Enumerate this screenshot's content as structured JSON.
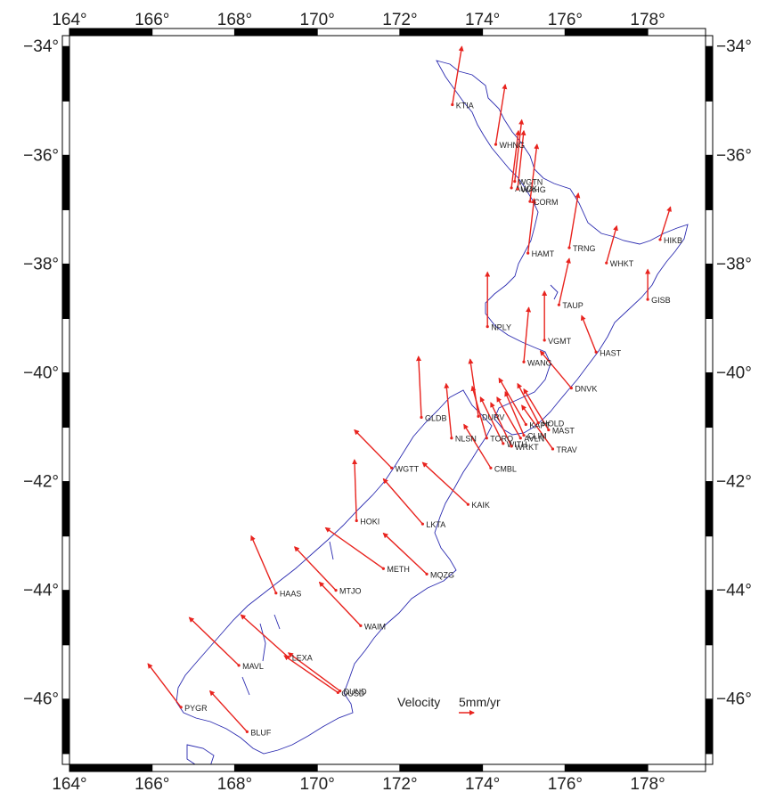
{
  "map": {
    "lon_range": [
      164,
      179.4
    ],
    "lat_range": [
      -47.2,
      -33.8
    ],
    "x_ticks": [
      {
        "value": 164,
        "label": "164°"
      },
      {
        "value": 166,
        "label": "166°"
      },
      {
        "value": 168,
        "label": "168°"
      },
      {
        "value": 170,
        "label": "170°"
      },
      {
        "value": 172,
        "label": "172°"
      },
      {
        "value": 174,
        "label": "174°"
      },
      {
        "value": 176,
        "label": "176°"
      },
      {
        "value": 178,
        "label": "178°"
      }
    ],
    "y_ticks": [
      {
        "value": -34,
        "label": "−34°",
        "right_label": "−34°"
      },
      {
        "value": -36,
        "label": "−36°",
        "right_label": "−36°"
      },
      {
        "value": -38,
        "label": "−38°",
        "right_label": "−38°"
      },
      {
        "value": -40,
        "label": "−40°",
        "right_label": "−40°"
      },
      {
        "value": -42,
        "label": "−42°",
        "right_label": "−42°"
      },
      {
        "value": -44,
        "label": "−44°",
        "right_label": "−44°"
      },
      {
        "value": -46,
        "label": "−46°",
        "right_label": "−46°"
      }
    ],
    "colors": {
      "coastline": "#2b2bb0",
      "vector": "#e8231e",
      "frame": "#000000"
    },
    "legend": {
      "label": "Velocity",
      "scale_text": "5mm/yr",
      "lon": 173.2,
      "lat": -45.95
    },
    "stations": [
      {
        "name": "KTIA",
        "lon": 173.27,
        "lat": -35.07,
        "vlon": 173.5,
        "vlat": -34.0
      },
      {
        "name": "WHNG",
        "lon": 174.32,
        "lat": -35.8,
        "vlon": 174.55,
        "vlat": -34.7
      },
      {
        "name": "WGTN",
        "lon": 174.78,
        "lat": -36.48,
        "vlon": 174.95,
        "vlat": -35.35
      },
      {
        "name": "AUCK",
        "lon": 174.7,
        "lat": -36.6,
        "vlon": 174.87,
        "vlat": -35.55
      },
      {
        "name": "WAHG",
        "lon": 174.85,
        "lat": -36.62,
        "vlon": 175.0,
        "vlat": -35.55
      },
      {
        "name": "CORM",
        "lon": 175.15,
        "lat": -36.85,
        "vlon": 175.32,
        "vlat": -35.8
      },
      {
        "name": "HAMT",
        "lon": 175.1,
        "lat": -37.8,
        "vlon": 175.25,
        "vlat": -36.8
      },
      {
        "name": "TRNG",
        "lon": 176.1,
        "lat": -37.7,
        "vlon": 176.32,
        "vlat": -36.7
      },
      {
        "name": "WHKT",
        "lon": 177.0,
        "lat": -37.98,
        "vlon": 177.25,
        "vlat": -37.3
      },
      {
        "name": "HIKB",
        "lon": 178.3,
        "lat": -37.55,
        "vlon": 178.55,
        "vlat": -36.95
      },
      {
        "name": "GISB",
        "lon": 178.0,
        "lat": -38.65,
        "vlon": 178.0,
        "vlat": -38.1
      },
      {
        "name": "TAUP",
        "lon": 175.85,
        "lat": -38.75,
        "vlon": 176.1,
        "vlat": -37.9
      },
      {
        "name": "NPLY",
        "lon": 174.12,
        "lat": -39.15,
        "vlon": 174.12,
        "vlat": -38.15
      },
      {
        "name": "VGMT",
        "lon": 175.5,
        "lat": -39.4,
        "vlon": 175.5,
        "vlat": -38.5
      },
      {
        "name": "WANG",
        "lon": 175.0,
        "lat": -39.8,
        "vlon": 175.12,
        "vlat": -38.8
      },
      {
        "name": "HAST",
        "lon": 176.75,
        "lat": -39.62,
        "vlon": 176.4,
        "vlat": -38.95
      },
      {
        "name": "DNVK",
        "lon": 176.15,
        "lat": -40.28,
        "vlon": 175.4,
        "vlat": -39.6
      },
      {
        "name": "GLDB",
        "lon": 172.52,
        "lat": -40.82,
        "vlon": 172.45,
        "vlat": -39.7
      },
      {
        "name": "DURV",
        "lon": 173.9,
        "lat": -40.8,
        "vlon": 173.7,
        "vlat": -39.75
      },
      {
        "name": "NLSN",
        "lon": 173.25,
        "lat": -41.2,
        "vlon": 173.12,
        "vlat": -40.2
      },
      {
        "name": "TORO",
        "lon": 174.1,
        "lat": -41.2,
        "vlon": 173.75,
        "vlat": -40.25
      },
      {
        "name": "WITH",
        "lon": 174.5,
        "lat": -41.3,
        "vlon": 173.95,
        "vlat": -40.45
      },
      {
        "name": "WRKT",
        "lon": 174.7,
        "lat": -41.35,
        "vlon": 174.2,
        "vlat": -40.55
      },
      {
        "name": "AVLN",
        "lon": 174.92,
        "lat": -41.2,
        "vlon": 174.35,
        "vlat": -40.45
      },
      {
        "name": "CLIM",
        "lon": 175.0,
        "lat": -41.15,
        "vlon": 174.55,
        "vlat": -40.35
      },
      {
        "name": "KAPT",
        "lon": 175.05,
        "lat": -40.95,
        "vlon": 174.4,
        "vlat": -40.1
      },
      {
        "name": "HOLD",
        "lon": 175.35,
        "lat": -40.92,
        "vlon": 174.85,
        "vlat": -40.2
      },
      {
        "name": "MAST",
        "lon": 175.6,
        "lat": -41.05,
        "vlon": 175.0,
        "vlat": -40.3
      },
      {
        "name": "TRAV",
        "lon": 175.7,
        "lat": -41.4,
        "vlon": 174.95,
        "vlat": -40.6
      },
      {
        "name": "CMBL",
        "lon": 174.2,
        "lat": -41.75,
        "vlon": 173.55,
        "vlat": -40.95
      },
      {
        "name": "WGTT",
        "lon": 171.8,
        "lat": -41.75,
        "vlon": 170.9,
        "vlat": -41.05
      },
      {
        "name": "KAIK",
        "lon": 173.65,
        "lat": -42.42,
        "vlon": 172.55,
        "vlat": -41.65
      },
      {
        "name": "HOKI",
        "lon": 170.95,
        "lat": -42.72,
        "vlon": 170.9,
        "vlat": -41.6
      },
      {
        "name": "LKTA",
        "lon": 172.55,
        "lat": -42.78,
        "vlon": 171.6,
        "vlat": -41.95
      },
      {
        "name": "METH",
        "lon": 171.6,
        "lat": -43.6,
        "vlon": 170.2,
        "vlat": -42.85
      },
      {
        "name": "MQZG",
        "lon": 172.65,
        "lat": -43.7,
        "vlon": 171.6,
        "vlat": -42.95
      },
      {
        "name": "HAAS",
        "lon": 169.0,
        "lat": -44.05,
        "vlon": 168.4,
        "vlat": -43.0
      },
      {
        "name": "MTJO",
        "lon": 170.45,
        "lat": -44.0,
        "vlon": 169.45,
        "vlat": -43.2
      },
      {
        "name": "WAIM",
        "lon": 171.05,
        "lat": -44.65,
        "vlon": 170.05,
        "vlat": -43.85
      },
      {
        "name": "MAVL",
        "lon": 168.1,
        "lat": -45.38,
        "vlon": 166.9,
        "vlat": -44.5
      },
      {
        "name": "LEXA",
        "lon": 169.3,
        "lat": -45.23,
        "vlon": 168.15,
        "vlat": -44.45
      },
      {
        "name": "OUSD",
        "lon": 170.5,
        "lat": -45.88,
        "vlon": 169.2,
        "vlat": -45.2
      },
      {
        "name": "DUND",
        "lon": 170.55,
        "lat": -45.85,
        "vlon": 169.3,
        "vlat": -45.15
      },
      {
        "name": "PYGR",
        "lon": 166.7,
        "lat": -46.15,
        "vlon": 165.9,
        "vlat": -45.35
      },
      {
        "name": "BLUF",
        "lon": 168.3,
        "lat": -46.6,
        "vlon": 167.4,
        "vlat": -45.85
      }
    ]
  }
}
